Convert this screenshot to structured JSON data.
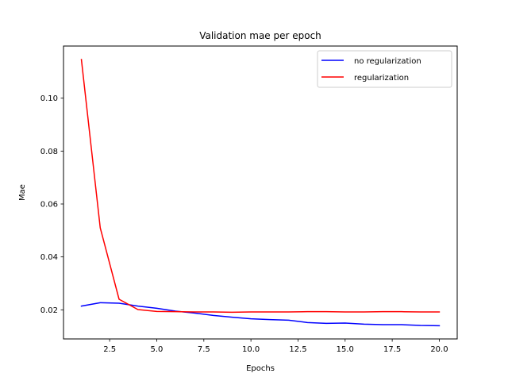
{
  "chart_data": {
    "type": "line",
    "title": "Validation mae per epoch",
    "xlabel": "Epochs",
    "ylabel": "Mae",
    "xlim": [
      0.05,
      20.95
    ],
    "ylim": [
      0.009,
      0.1197
    ],
    "xticks": [
      2.5,
      5.0,
      7.5,
      10.0,
      12.5,
      15.0,
      17.5,
      20.0
    ],
    "xtick_labels": [
      "2.5",
      "5.0",
      "7.5",
      "10.0",
      "12.5",
      "15.0",
      "17.5",
      "20.0"
    ],
    "yticks": [
      0.02,
      0.04,
      0.06,
      0.08,
      0.1
    ],
    "ytick_labels": [
      "0.02",
      "0.04",
      "0.06",
      "0.08",
      "0.10"
    ],
    "grid": false,
    "legend_position": "upper right",
    "x": [
      1,
      2,
      3,
      4,
      5,
      6,
      7,
      8,
      9,
      10,
      11,
      12,
      13,
      14,
      15,
      16,
      17,
      18,
      19,
      20
    ],
    "series": [
      {
        "name": "no regularization",
        "color": "#0000ff",
        "values": [
          0.0214,
          0.0227,
          0.0225,
          0.0214,
          0.0206,
          0.0195,
          0.0188,
          0.0179,
          0.0172,
          0.0166,
          0.0163,
          0.0161,
          0.0152,
          0.0149,
          0.015,
          0.0146,
          0.0144,
          0.0144,
          0.0141,
          0.014
        ]
      },
      {
        "name": "regularization",
        "color": "#ff0000",
        "values": [
          0.1146,
          0.051,
          0.024,
          0.0201,
          0.0194,
          0.0193,
          0.0192,
          0.0192,
          0.0191,
          0.0192,
          0.0192,
          0.0192,
          0.0193,
          0.0193,
          0.0192,
          0.0192,
          0.0193,
          0.0193,
          0.0192,
          0.0192
        ]
      }
    ]
  }
}
